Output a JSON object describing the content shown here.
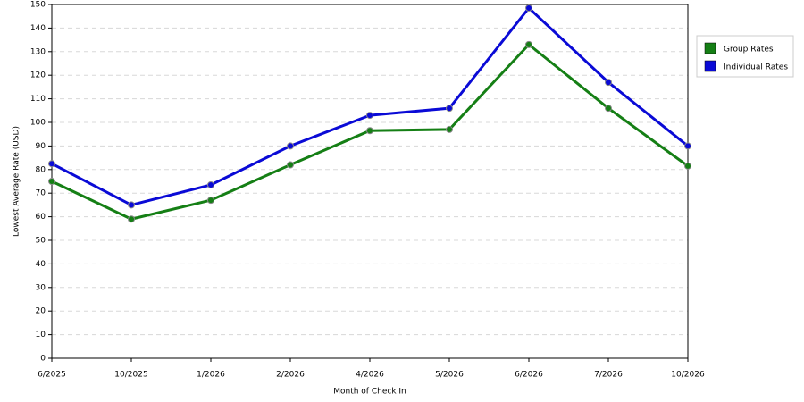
{
  "chart_data": {
    "type": "line",
    "x_label": "Month of Check In",
    "y_label": "Lowest Average Rate (USD)",
    "categories": [
      "6/2025",
      "10/2025",
      "1/2026",
      "2/2026",
      "4/2026",
      "5/2026",
      "6/2026",
      "7/2026",
      "10/2026"
    ],
    "series": [
      {
        "name": "Group Rates",
        "color": "#157f15",
        "values": [
          75,
          59,
          67,
          82,
          96.5,
          97,
          133,
          106,
          81.5
        ]
      },
      {
        "name": "Individual Rates",
        "color": "#0a0ad6",
        "values": [
          82.5,
          65,
          73.5,
          90,
          103,
          106,
          148.5,
          117,
          90
        ]
      }
    ],
    "ylim": [
      0,
      150
    ],
    "yticks": [
      0,
      10,
      20,
      30,
      40,
      50,
      60,
      70,
      80,
      90,
      100,
      110,
      120,
      130,
      140,
      150
    ],
    "grid": true,
    "legend": "right"
  }
}
